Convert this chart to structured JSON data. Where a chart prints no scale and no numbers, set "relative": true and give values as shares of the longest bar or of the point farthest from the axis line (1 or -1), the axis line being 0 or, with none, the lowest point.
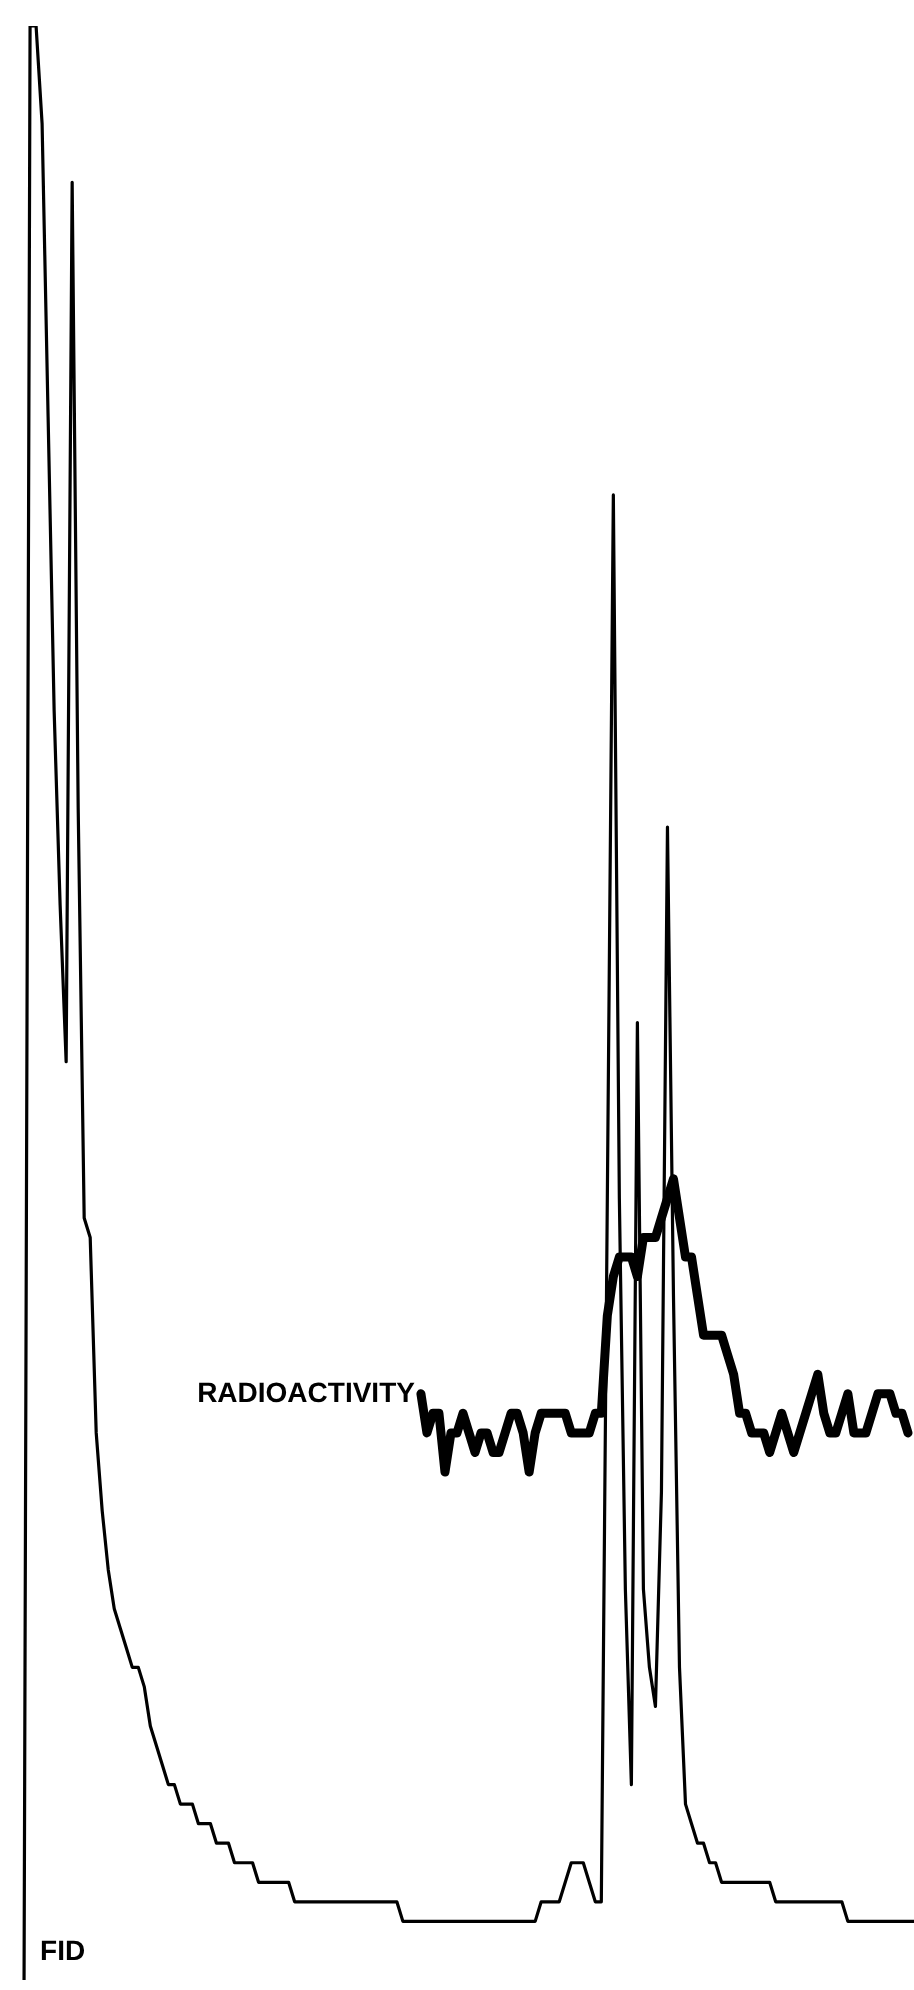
{
  "chart_data": {
    "type": "line",
    "relative": true,
    "categories": [
      null,
      null,
      null,
      null,
      null,
      null,
      null,
      null,
      null,
      null,
      null,
      null,
      null,
      null,
      null,
      null,
      null,
      null,
      null,
      null,
      null,
      null,
      null,
      null,
      null,
      null,
      null,
      null,
      null,
      null,
      null,
      null,
      null,
      null,
      null,
      null,
      null,
      null,
      null,
      null,
      null,
      null,
      null,
      null,
      null,
      null,
      null,
      null,
      null,
      null,
      null,
      null,
      null,
      null,
      null,
      null,
      null,
      null,
      null,
      null,
      null,
      null,
      null,
      null,
      null,
      null,
      null,
      null,
      null,
      null,
      null,
      null,
      null,
      null,
      null,
      null,
      null,
      null,
      null,
      null,
      null,
      null,
      null,
      null,
      null,
      null,
      null,
      null,
      null,
      null,
      null,
      null,
      null,
      null,
      null,
      null,
      null,
      null,
      null,
      null,
      null,
      null,
      null,
      null,
      null,
      null,
      null,
      null,
      null,
      null,
      null,
      null,
      null,
      null,
      null,
      null,
      null,
      null,
      null,
      null,
      null,
      null,
      null,
      null,
      null,
      null,
      null,
      null,
      null,
      null,
      null,
      null,
      null,
      null,
      null,
      null,
      null,
      null,
      null,
      null,
      null,
      null,
      null,
      null,
      null,
      null,
      null,
      null,
      null,
      null,
      null,
      null,
      null
    ],
    "series": [
      {
        "name": "FID",
        "color": "#000000",
        "values": [
          null,
          null,
          null,
          null,
          0,
          1,
          1,
          0.95,
          0.8,
          0.65,
          0.55,
          0.47,
          0.92,
          0.6,
          0.39,
          0.38,
          0.28,
          0.24,
          0.21,
          0.19,
          0.18,
          0.17,
          0.16,
          0.16,
          0.15,
          0.13,
          0.12,
          0.11,
          0.1,
          0.1,
          0.09,
          0.09,
          0.09,
          0.08,
          0.08,
          0.08,
          0.07,
          0.07,
          0.07,
          0.06,
          0.06,
          0.06,
          0.06,
          0.05,
          0.05,
          0.05,
          0.05,
          0.05,
          0.05,
          0.04,
          0.04,
          0.04,
          0.04,
          0.04,
          0.04,
          0.04,
          0.04,
          0.04,
          0.04,
          0.04,
          0.04,
          0.04,
          0.04,
          0.04,
          0.04,
          0.04,
          0.04,
          0.03,
          0.03,
          0.03,
          0.03,
          0.03,
          0.03,
          0.03,
          0.03,
          0.03,
          0.03,
          0.03,
          0.03,
          0.03,
          0.03,
          0.03,
          0.03,
          0.03,
          0.03,
          0.03,
          0.03,
          0.03,
          0.03,
          0.03,
          0.04,
          0.04,
          0.04,
          0.04,
          0.05,
          0.06,
          0.06,
          0.06,
          0.05,
          0.04,
          0.04,
          0.4,
          0.76,
          0.4,
          0.2,
          0.1,
          0.49,
          0.2,
          0.16,
          0.14,
          0.25,
          0.59,
          0.35,
          0.16,
          0.09,
          0.08,
          0.07,
          0.07,
          0.06,
          0.06,
          0.05,
          0.05,
          0.05,
          0.05,
          0.05,
          0.05,
          0.05,
          0.05,
          0.05,
          0.04,
          0.04,
          0.04,
          0.04,
          0.04,
          0.04,
          0.04,
          0.04,
          0.04,
          0.04,
          0.04,
          0.04,
          0.03,
          0.03,
          0.03,
          0.03,
          0.03,
          0.03,
          0.03,
          0.03,
          0.03,
          0.03,
          0.03,
          0.03
        ]
      },
      {
        "name": "RADIOACTIVITY",
        "color": "#000000",
        "values": [
          null,
          null,
          null,
          null,
          null,
          null,
          null,
          null,
          null,
          null,
          null,
          null,
          null,
          null,
          null,
          null,
          null,
          null,
          null,
          null,
          null,
          null,
          null,
          null,
          null,
          null,
          null,
          null,
          null,
          null,
          null,
          null,
          null,
          null,
          null,
          null,
          null,
          null,
          null,
          null,
          null,
          null,
          null,
          null,
          null,
          null,
          null,
          null,
          null,
          null,
          null,
          null,
          null,
          null,
          null,
          null,
          null,
          null,
          null,
          null,
          null,
          null,
          null,
          null,
          null,
          null,
          null,
          null,
          null,
          null,
          0.3,
          0.28,
          0.29,
          0.29,
          0.26,
          0.28,
          0.28,
          0.29,
          0.28,
          0.27,
          0.28,
          0.28,
          0.27,
          0.27,
          0.28,
          0.29,
          0.29,
          0.28,
          0.26,
          0.28,
          0.29,
          0.29,
          0.29,
          0.29,
          0.29,
          0.28,
          0.28,
          0.28,
          0.28,
          0.29,
          0.29,
          0.34,
          0.36,
          0.37,
          0.37,
          0.37,
          0.36,
          0.38,
          0.38,
          0.38,
          0.39,
          0.4,
          0.41,
          0.39,
          0.37,
          0.37,
          0.35,
          0.33,
          0.33,
          0.33,
          0.33,
          0.32,
          0.31,
          0.29,
          0.29,
          0.28,
          0.28,
          0.28,
          0.27,
          0.28,
          0.29,
          0.28,
          0.27,
          0.28,
          0.29,
          0.3,
          0.31,
          0.29,
          0.28,
          0.28,
          0.29,
          0.3,
          0.28,
          0.28,
          0.28,
          0.29,
          0.3,
          0.3,
          0.3,
          0.29,
          0.29,
          0.28,
          null
        ]
      }
    ]
  }
}
